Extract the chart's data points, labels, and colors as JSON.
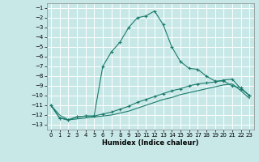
{
  "xlabel": "Humidex (Indice chaleur)",
  "bg_color": "#c8e8e8",
  "grid_color": "#b8d8d8",
  "line_color": "#1a7a6a",
  "x": [
    0,
    1,
    2,
    3,
    4,
    5,
    6,
    7,
    8,
    9,
    10,
    11,
    12,
    13,
    14,
    15,
    16,
    17,
    18,
    19,
    20,
    21,
    22,
    23
  ],
  "curve1_y": [
    -11.0,
    -12.3,
    -12.5,
    -12.2,
    -12.1,
    -12.1,
    -7.0,
    -5.5,
    -4.5,
    -3.0,
    -2.0,
    -1.8,
    -1.3,
    -2.7,
    -5.0,
    -6.5,
    -7.2,
    -7.3,
    -8.0,
    -8.5,
    -8.5,
    -9.0,
    -9.2,
    -10.0
  ],
  "curve2_y": [
    -11.0,
    -12.3,
    -12.5,
    -12.2,
    -12.1,
    -12.1,
    -11.9,
    -11.7,
    -11.4,
    -11.1,
    -10.7,
    -10.4,
    -10.1,
    -9.8,
    -9.5,
    -9.3,
    -9.0,
    -8.8,
    -8.7,
    -8.6,
    -8.4,
    -8.3,
    -9.3,
    -10.0
  ],
  "curve3_y": [
    -11.0,
    -12.0,
    -12.5,
    -12.4,
    -12.3,
    -12.2,
    -12.1,
    -12.0,
    -11.8,
    -11.6,
    -11.3,
    -11.0,
    -10.7,
    -10.4,
    -10.2,
    -9.9,
    -9.7,
    -9.5,
    -9.3,
    -9.1,
    -8.9,
    -8.8,
    -9.5,
    -10.3
  ],
  "ylim": [
    -13.5,
    -0.5
  ],
  "xlim": [
    -0.5,
    23.5
  ],
  "yticks": [
    -13,
    -12,
    -11,
    -10,
    -9,
    -8,
    -7,
    -6,
    -5,
    -4,
    -3,
    -2,
    -1
  ],
  "xticks": [
    0,
    1,
    2,
    3,
    4,
    5,
    6,
    7,
    8,
    9,
    10,
    11,
    12,
    13,
    14,
    15,
    16,
    17,
    18,
    19,
    20,
    21,
    22,
    23
  ],
  "tick_fontsize": 5,
  "xlabel_fontsize": 6,
  "linewidth": 0.8,
  "marker_size": 2.0
}
